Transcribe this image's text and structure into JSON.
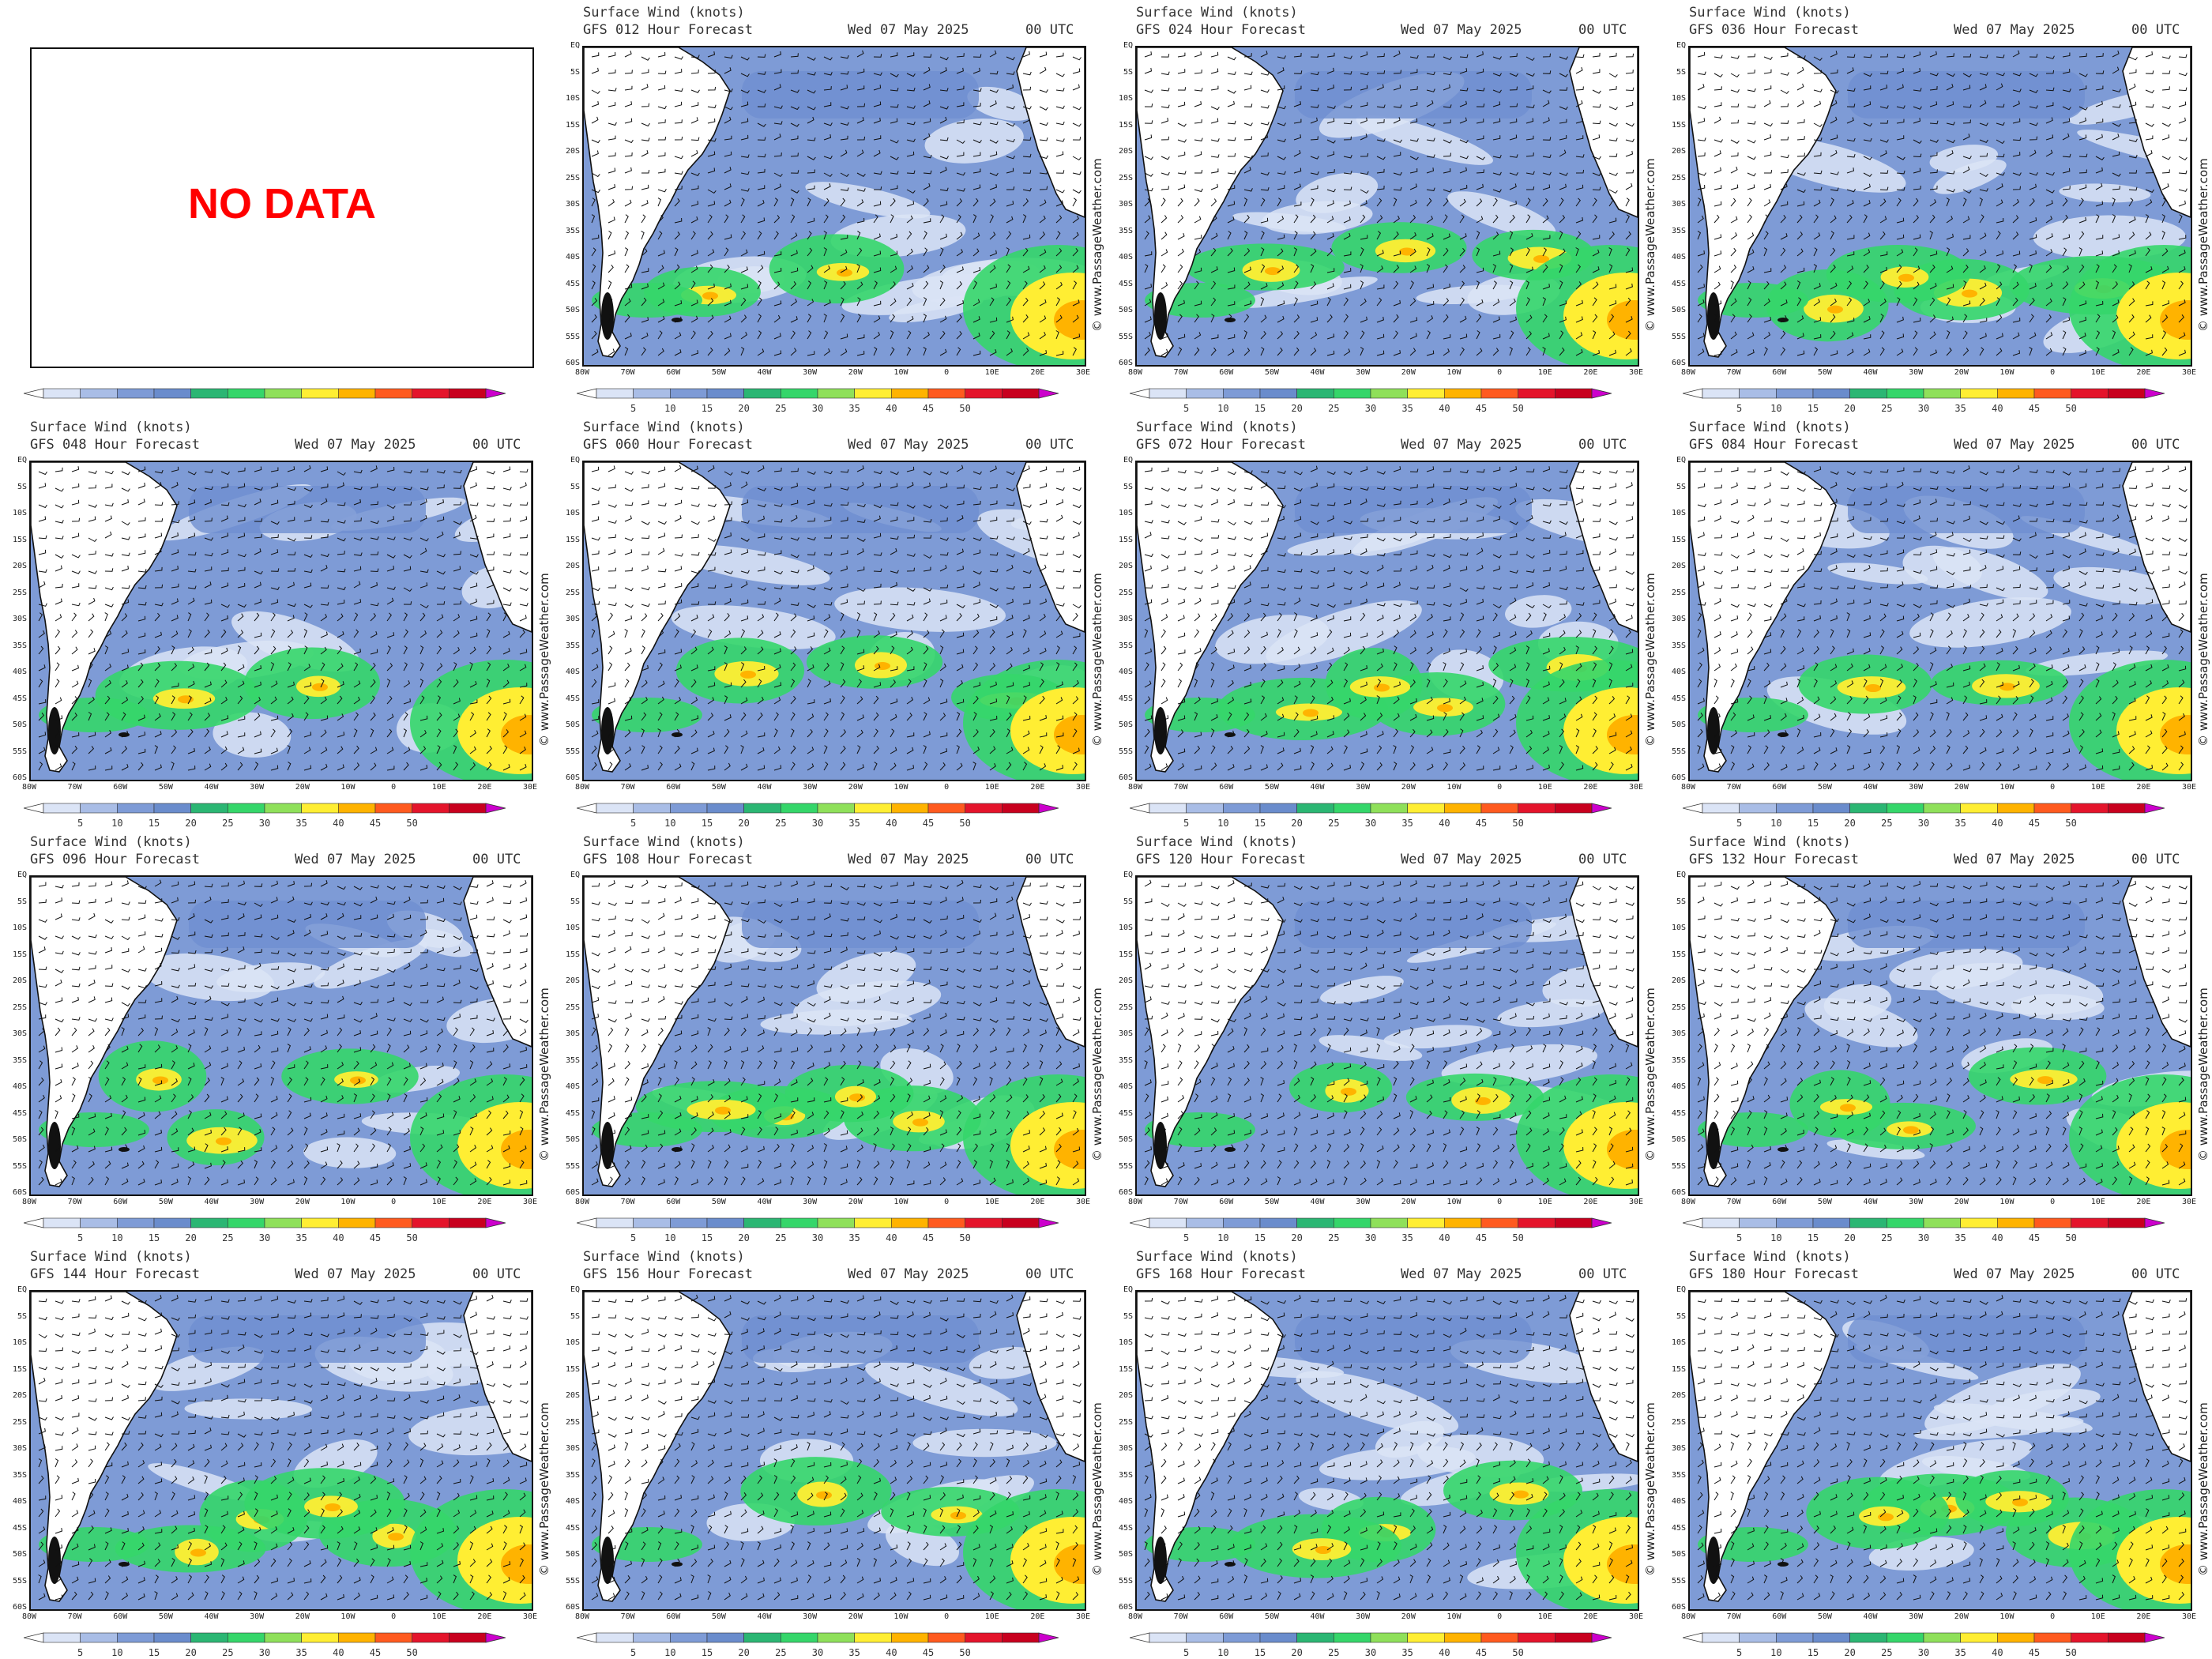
{
  "header": {
    "title": "Surface Wind (knots)",
    "date": "Wed 07 May 2025",
    "time": "00 UTC"
  },
  "no_data_label": "NO DATA",
  "credit": "© www.PassageWeather.com",
  "forecast_hours": [
    "GFS 012 Hour Forecast",
    "GFS 024 Hour Forecast",
    "GFS 036 Hour Forecast",
    "GFS 048 Hour Forecast",
    "GFS 060 Hour Forecast",
    "GFS 072 Hour Forecast",
    "GFS 084 Hour Forecast",
    "GFS 096 Hour Forecast",
    "GFS 108 Hour Forecast",
    "GFS 120 Hour Forecast",
    "GFS 132 Hour Forecast",
    "GFS 144 Hour Forecast",
    "GFS 156 Hour Forecast",
    "GFS 168 Hour Forecast",
    "GFS 180 Hour Forecast"
  ],
  "lat_labels": [
    "EQ",
    "5S",
    "10S",
    "15S",
    "20S",
    "25S",
    "30S",
    "35S",
    "40S",
    "45S",
    "50S",
    "55S",
    "60S"
  ],
  "lon_labels": [
    "80W",
    "70W",
    "60W",
    "50W",
    "40W",
    "30W",
    "20W",
    "10W",
    "0",
    "10E",
    "20E",
    "30E"
  ],
  "colorbar_ticks": [
    "5",
    "10",
    "15",
    "20",
    "25",
    "30",
    "35",
    "40",
    "45",
    "50"
  ],
  "colorbar_colors": [
    "#ffffff",
    "#dbe4f6",
    "#a9bde6",
    "#7e9bd6",
    "#6a8ccc",
    "#2bb673",
    "#35d66a",
    "#8fe05a",
    "#ffee33",
    "#ffb300",
    "#ff5a1f",
    "#e4142b",
    "#c8001e",
    "#cc00cc"
  ],
  "map_colors": {
    "land": "#ffffff",
    "ocean_base": "#7e9bd6",
    "calm": "#dbe4f6",
    "light": "#a9bde6",
    "strong": "#35d66a",
    "stronger": "#ffee33",
    "storm": "#ffb300",
    "severe": "#ff5a1f"
  }
}
